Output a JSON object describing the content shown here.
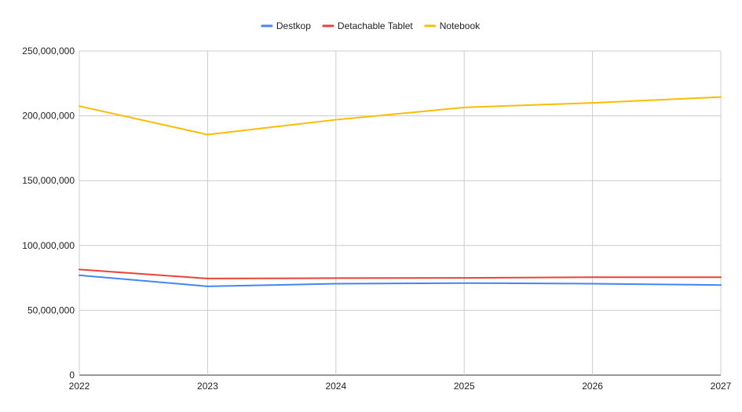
{
  "chart_data": {
    "type": "line",
    "title": "",
    "xlabel": "",
    "ylabel": "",
    "x": [
      "2022",
      "2023",
      "2024",
      "2025",
      "2026",
      "2027"
    ],
    "series": [
      {
        "name": "Destkop",
        "color": "#4285f4",
        "values": [
          77000000,
          68500000,
          70500000,
          71000000,
          70500000,
          69500000
        ]
      },
      {
        "name": "Detachable Tablet",
        "color": "#ea4335",
        "values": [
          81500000,
          74500000,
          74800000,
          75000000,
          75500000,
          75500000
        ]
      },
      {
        "name": "Notebook",
        "color": "#fbbc04",
        "values": [
          207500000,
          185500000,
          197000000,
          206500000,
          210000000,
          214500000
        ]
      }
    ],
    "ylim": [
      0,
      250000000
    ],
    "yticks": [
      0,
      50000000,
      100000000,
      150000000,
      200000000,
      250000000
    ],
    "ytick_labels": [
      "0",
      "50,000,000",
      "100,000,000",
      "150,000,000",
      "200,000,000",
      "250,000,000"
    ],
    "grid": true,
    "legend_position": "top-center"
  }
}
